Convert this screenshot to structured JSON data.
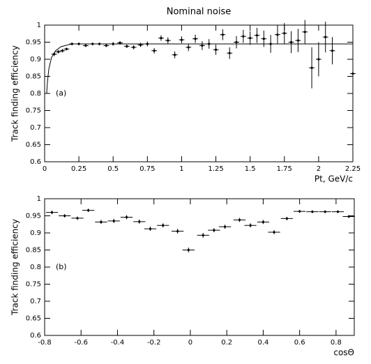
{
  "chart_data": [
    {
      "type": "scatter",
      "title": "Nominal noise",
      "annotation": "(a)",
      "xlabel": "Pt, GeV/c",
      "ylabel": "Track finding efficiency",
      "xlim": [
        0,
        2.25
      ],
      "ylim": [
        0.6,
        1
      ],
      "xticks": [
        0,
        0.25,
        0.5,
        0.75,
        1,
        1.25,
        1.5,
        1.75,
        2,
        2.25
      ],
      "yticks": [
        0.6,
        0.65,
        0.7,
        0.75,
        0.8,
        0.85,
        0.9,
        0.95,
        1
      ],
      "points": {
        "x": [
          0.07,
          0.1,
          0.13,
          0.16,
          0.2,
          0.25,
          0.3,
          0.35,
          0.4,
          0.45,
          0.5,
          0.55,
          0.6,
          0.65,
          0.7,
          0.75,
          0.8,
          0.85,
          0.9,
          0.95,
          1.0,
          1.05,
          1.1,
          1.15,
          1.2,
          1.25,
          1.3,
          1.35,
          1.4,
          1.45,
          1.5,
          1.55,
          1.6,
          1.65,
          1.7,
          1.75,
          1.8,
          1.85,
          1.9,
          1.95,
          2.0,
          2.05,
          2.1,
          2.25
        ],
        "values": [
          0.915,
          0.922,
          0.925,
          0.93,
          0.945,
          0.945,
          0.94,
          0.945,
          0.945,
          0.94,
          0.945,
          0.948,
          0.938,
          0.935,
          0.942,
          0.945,
          0.925,
          0.962,
          0.955,
          0.913,
          0.957,
          0.935,
          0.96,
          0.94,
          0.945,
          0.928,
          0.972,
          0.918,
          0.95,
          0.967,
          0.962,
          0.97,
          0.96,
          0.945,
          0.972,
          0.976,
          0.95,
          0.955,
          0.98,
          0.875,
          0.9,
          0.965,
          0.925,
          0.858
        ],
        "errors": [
          0.006,
          0.005,
          0.005,
          0.004,
          0.004,
          0.004,
          0.004,
          0.004,
          0.004,
          0.004,
          0.005,
          0.005,
          0.005,
          0.006,
          0.006,
          0.007,
          0.008,
          0.008,
          0.009,
          0.01,
          0.01,
          0.011,
          0.012,
          0.013,
          0.014,
          0.015,
          0.016,
          0.017,
          0.018,
          0.019,
          0.02,
          0.022,
          0.024,
          0.026,
          0.028,
          0.03,
          0.032,
          0.034,
          0.035,
          0.06,
          0.05,
          0.045,
          0.04,
          0.065
        ],
        "xerr": 0.02
      },
      "fit": {
        "x": [
          0.015,
          0.02,
          0.03,
          0.05,
          0.08,
          0.12,
          0.2,
          2.25
        ],
        "values": [
          0.8,
          0.83,
          0.87,
          0.905,
          0.925,
          0.937,
          0.945,
          0.945
        ]
      }
    },
    {
      "type": "scatter",
      "annotation": "(b)",
      "xlabel": "cosΘ",
      "ylabel": "Track finding efficiency",
      "xlim": [
        -0.8,
        0.9
      ],
      "ylim": [
        0.6,
        1
      ],
      "xticks": [
        -0.8,
        -0.6,
        -0.4,
        -0.2,
        0,
        0.2,
        0.4,
        0.6,
        0.8
      ],
      "yticks": [
        0.6,
        0.65,
        0.7,
        0.75,
        0.8,
        0.85,
        0.9,
        0.95,
        1
      ],
      "points": {
        "x": [
          -0.76,
          -0.69,
          -0.62,
          -0.56,
          -0.49,
          -0.42,
          -0.35,
          -0.28,
          -0.22,
          -0.15,
          -0.07,
          -0.01,
          0.07,
          0.13,
          0.19,
          0.27,
          0.33,
          0.4,
          0.46,
          0.53,
          0.6,
          0.67,
          0.74,
          0.81,
          0.87
        ],
        "values": [
          0.96,
          0.95,
          0.943,
          0.966,
          0.932,
          0.935,
          0.946,
          0.933,
          0.912,
          0.922,
          0.905,
          0.85,
          0.893,
          0.908,
          0.918,
          0.938,
          0.922,
          0.932,
          0.902,
          0.942,
          0.963,
          0.962,
          0.962,
          0.962,
          0.948
        ],
        "errors": [
          0.005,
          0.005,
          0.005,
          0.005,
          0.006,
          0.006,
          0.006,
          0.006,
          0.006,
          0.006,
          0.007,
          0.007,
          0.007,
          0.006,
          0.006,
          0.006,
          0.006,
          0.006,
          0.006,
          0.005,
          0.004,
          0.004,
          0.004,
          0.004,
          0.004
        ],
        "xerr": 0.033
      }
    }
  ]
}
